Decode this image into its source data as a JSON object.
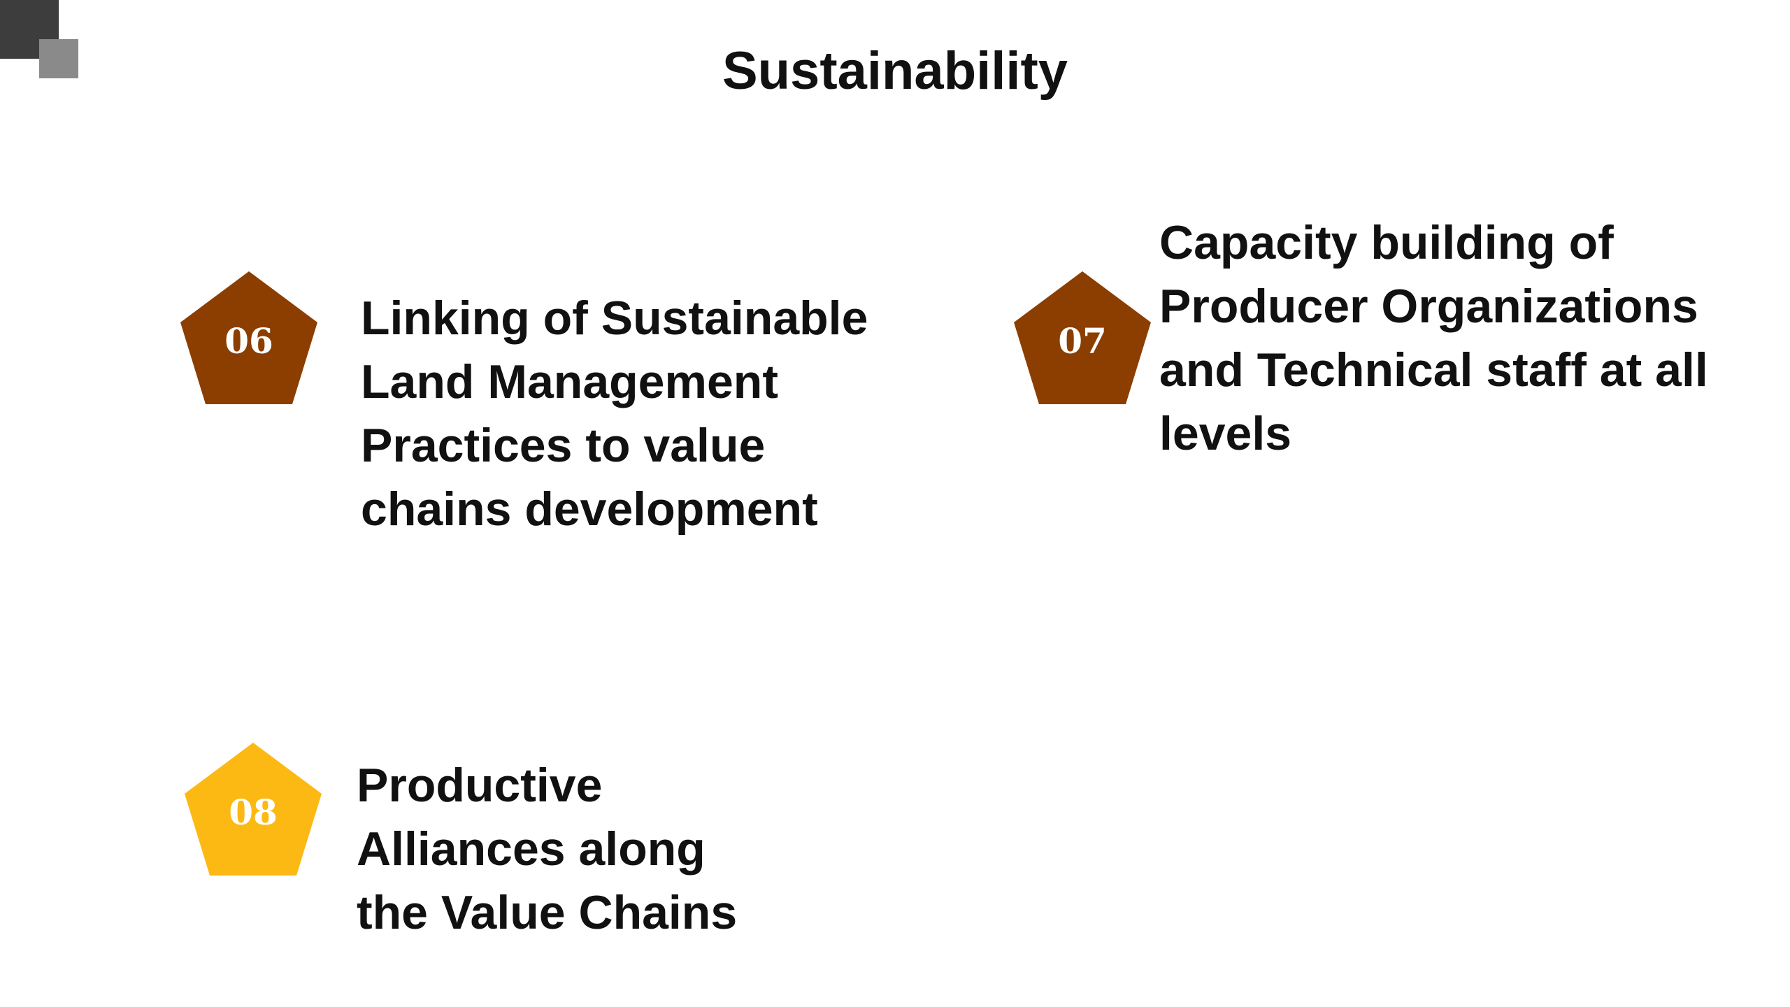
{
  "slide": {
    "title": "Sustainability"
  },
  "items": [
    {
      "number": "06",
      "color": "#8B3E00",
      "text": "Linking of Sustainable\nLand Management\nPractices to value\nchains development"
    },
    {
      "number": "07",
      "color": "#8B3E00",
      "text": "Capacity building of\nProducer Organizations\nand Technical staff at all\nlevels"
    },
    {
      "number": "08",
      "color": "#FDB913",
      "text": "Productive\nAlliances along\nthe Value Chains"
    }
  ],
  "icons": {
    "corner": "decorative-squares-icon",
    "badge": "pentagon-icon"
  }
}
